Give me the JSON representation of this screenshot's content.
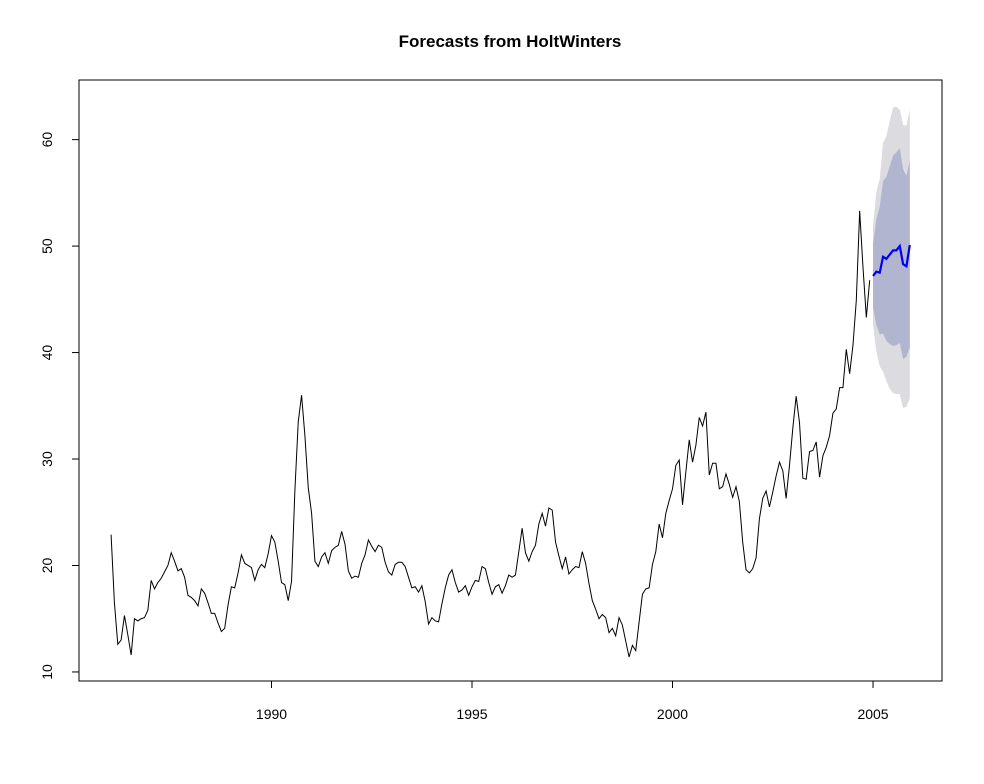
{
  "chart_data": {
    "type": "line",
    "title": "Forecasts from HoltWinters",
    "xlim": [
      1985.2,
      2006.72
    ],
    "ylim": [
      9.15,
      65.6
    ],
    "xticks": [
      1990,
      1995,
      2000,
      2005
    ],
    "yticks": [
      10,
      20,
      30,
      40,
      50,
      60
    ],
    "series": [
      {
        "color": "#000000",
        "x": [
          1986,
          1986.083,
          1986.167,
          1986.25,
          1986.333,
          1986.417,
          1986.5,
          1986.583,
          1986.667,
          1986.75,
          1986.833,
          1986.917,
          1987,
          1987.083,
          1987.167,
          1987.25,
          1987.333,
          1987.417,
          1987.5,
          1987.583,
          1987.667,
          1987.75,
          1987.833,
          1987.917,
          1988,
          1988.083,
          1988.167,
          1988.25,
          1988.333,
          1988.417,
          1988.5,
          1988.583,
          1988.667,
          1988.75,
          1988.833,
          1988.917,
          1989,
          1989.083,
          1989.167,
          1989.25,
          1989.333,
          1989.417,
          1989.5,
          1989.583,
          1989.667,
          1989.75,
          1989.833,
          1989.917,
          1990,
          1990.083,
          1990.167,
          1990.25,
          1990.333,
          1990.417,
          1990.5,
          1990.583,
          1990.667,
          1990.75,
          1990.833,
          1990.917,
          1991,
          1991.083,
          1991.167,
          1991.25,
          1991.333,
          1991.417,
          1991.5,
          1991.583,
          1991.667,
          1991.75,
          1991.833,
          1991.917,
          1992,
          1992.083,
          1992.167,
          1992.25,
          1992.333,
          1992.417,
          1992.5,
          1992.583,
          1992.667,
          1992.75,
          1992.833,
          1992.917,
          1993,
          1993.083,
          1993.167,
          1993.25,
          1993.333,
          1993.417,
          1993.5,
          1993.583,
          1993.667,
          1993.75,
          1993.833,
          1993.917,
          1994,
          1994.083,
          1994.167,
          1994.25,
          1994.333,
          1994.417,
          1994.5,
          1994.583,
          1994.667,
          1994.75,
          1994.833,
          1994.917,
          1995,
          1995.083,
          1995.167,
          1995.25,
          1995.333,
          1995.417,
          1995.5,
          1995.583,
          1995.667,
          1995.75,
          1995.833,
          1995.917,
          1996,
          1996.083,
          1996.167,
          1996.25,
          1996.333,
          1996.417,
          1996.5,
          1996.583,
          1996.667,
          1996.75,
          1996.833,
          1996.917,
          1997,
          1997.083,
          1997.167,
          1997.25,
          1997.333,
          1997.417,
          1997.5,
          1997.583,
          1997.667,
          1997.75,
          1997.833,
          1997.917,
          1998,
          1998.083,
          1998.167,
          1998.25,
          1998.333,
          1998.417,
          1998.5,
          1998.583,
          1998.667,
          1998.75,
          1998.833,
          1998.917,
          1999,
          1999.083,
          1999.167,
          1999.25,
          1999.333,
          1999.417,
          1999.5,
          1999.583,
          1999.667,
          1999.75,
          1999.833,
          1999.917,
          2000,
          2000.083,
          2000.167,
          2000.25,
          2000.333,
          2000.417,
          2000.5,
          2000.583,
          2000.667,
          2000.75,
          2000.833,
          2000.917,
          2001,
          2001.083,
          2001.167,
          2001.25,
          2001.333,
          2001.417,
          2001.5,
          2001.583,
          2001.667,
          2001.75,
          2001.833,
          2001.917,
          2002,
          2002.083,
          2002.167,
          2002.25,
          2002.333,
          2002.417,
          2002.5,
          2002.583,
          2002.667,
          2002.75,
          2002.833,
          2002.917,
          2003,
          2003.083,
          2003.167,
          2003.25,
          2003.333,
          2003.417,
          2003.5,
          2003.583,
          2003.667,
          2003.75,
          2003.833,
          2003.917,
          2004,
          2004.083,
          2004.167,
          2004.25,
          2004.333,
          2004.417,
          2004.5,
          2004.583,
          2004.667,
          2004.75,
          2004.833,
          2004.917
        ],
        "values": [
          22.9,
          16.5,
          12.6,
          13,
          15.3,
          13.5,
          11.6,
          15,
          14.8,
          15,
          15.1,
          15.8,
          18.6,
          17.8,
          18.4,
          18.8,
          19.4,
          20,
          21.2,
          20.4,
          19.5,
          19.7,
          18.9,
          17.2,
          17,
          16.7,
          16.2,
          17.8,
          17.4,
          16.5,
          15.5,
          15.5,
          14.6,
          13.8,
          14.1,
          16.3,
          18,
          17.9,
          19.3,
          21,
          20.2,
          20,
          19.8,
          18.6,
          19.6,
          20.1,
          19.8,
          21.1,
          22.8,
          22.2,
          20.4,
          18.4,
          18.2,
          16.7,
          18.5,
          27,
          33.5,
          36,
          32.2,
          27.3,
          24.9,
          20.4,
          19.9,
          20.8,
          21.2,
          20.2,
          21.4,
          21.7,
          21.9,
          23.2,
          22,
          19.5,
          18.8,
          19,
          18.9,
          20.2,
          21,
          22.4,
          21.8,
          21.3,
          21.9,
          21.7,
          20.3,
          19.4,
          19.1,
          20.1,
          20.3,
          20.3,
          19.9,
          18.9,
          17.9,
          18,
          17.5,
          18.1,
          16.6,
          14.5,
          15.1,
          14.8,
          14.7,
          16.4,
          17.9,
          19.1,
          19.6,
          18.4,
          17.5,
          17.7,
          18.1,
          17.2,
          18,
          18.6,
          18.5,
          19.9,
          19.7,
          18.4,
          17.3,
          18,
          18.2,
          17.4,
          18.1,
          19.1,
          18.9,
          19.1,
          21.3,
          23.5,
          21.2,
          20.4,
          21.3,
          21.9,
          23.9,
          24.9,
          23.7,
          25.4,
          25.2,
          22.2,
          20.9,
          19.7,
          20.8,
          19.2,
          19.6,
          19.9,
          19.8,
          21.3,
          20.2,
          18.3,
          16.7,
          15.9,
          15,
          15.4,
          15.1,
          13.7,
          14.1,
          13.4,
          15.1,
          14.4,
          12.9,
          11.4,
          12.5,
          12,
          14.7,
          17.3,
          17.8,
          17.9,
          20.1,
          21.3,
          23.9,
          22.6,
          24.9,
          26.1,
          27.2,
          29.4,
          29.9,
          25.7,
          28.8,
          31.8,
          29.7,
          31.3,
          33.9,
          33.1,
          34.4,
          28.5,
          29.6,
          29.6,
          27.2,
          27.4,
          28.6,
          27.6,
          26.4,
          27.4,
          26,
          22.2,
          19.6,
          19.3,
          19.7,
          20.7,
          24.4,
          26.3,
          27,
          25.5,
          26.9,
          28.4,
          29.7,
          28.9,
          26.3,
          29.4,
          32.9,
          35.9,
          33.4,
          28.2,
          28.1,
          30.7,
          30.8,
          31.6,
          28.3,
          30.3,
          31.1,
          32.2,
          34.3,
          34.7,
          36.7,
          36.7,
          40.3,
          38,
          40.7,
          44.9,
          53.3,
          48,
          43.3,
          46.8
        ]
      },
      {
        "color": "#0000ee",
        "band_colors": [
          "#dbdbe0",
          "#b1b5d0"
        ],
        "x": [
          2005,
          2005.083,
          2005.167,
          2005.25,
          2005.333,
          2005.417,
          2005.5,
          2005.583,
          2005.667,
          2005.75,
          2005.833,
          2005.917
        ],
        "values": [
          47.2,
          47.6,
          47.5,
          49,
          48.8,
          49.2,
          49.6,
          49.6,
          50,
          48.3,
          48.1,
          50.1
        ],
        "lower95": [
          42.6,
          40.1,
          38.7,
          38.2,
          37.3,
          36.6,
          36.2,
          36.1,
          36.1,
          34.8,
          34.9,
          35.7
        ],
        "upper95": [
          51.8,
          55.1,
          56.3,
          59.7,
          60.3,
          61.8,
          63,
          63.1,
          62.8,
          61.4,
          61.3,
          62.8
        ],
        "lower80": [
          44.2,
          42.6,
          41.7,
          41.8,
          41.1,
          40.8,
          40.6,
          40.7,
          40.9,
          39.4,
          39.6,
          40.5
        ],
        "upper80": [
          50.2,
          52.5,
          53.7,
          56.1,
          56.5,
          57.5,
          58.5,
          58.8,
          59.2,
          57.2,
          56.6,
          58
        ]
      }
    ]
  }
}
